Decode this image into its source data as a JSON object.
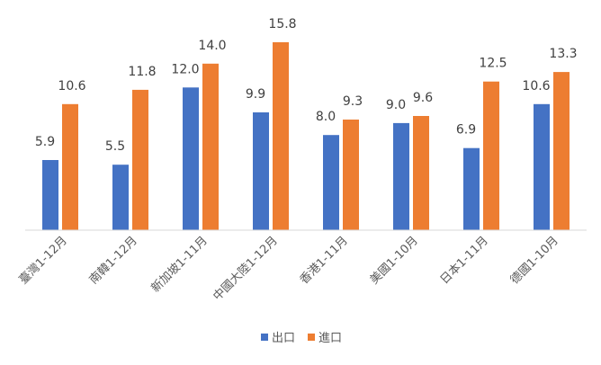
{
  "chart_data": {
    "type": "bar",
    "categories": [
      "臺灣1-12月",
      "南韓1-12月",
      "新加坡1-11月",
      "中國大陸1-12月",
      "香港1-11月",
      "美國1-10月",
      "日本1-11月",
      "德國1-10月"
    ],
    "series": [
      {
        "name": "出口",
        "values": [
          5.9,
          5.5,
          12.0,
          9.9,
          8.0,
          9.0,
          6.9,
          10.6
        ],
        "labels": [
          "5.9",
          "5.5",
          "12.0",
          "9.9",
          "8.0",
          "9.0",
          "6.9",
          "10.6"
        ],
        "color": "#4472C4"
      },
      {
        "name": "進口",
        "values": [
          10.6,
          11.8,
          14.0,
          15.8,
          9.3,
          9.6,
          12.5,
          13.3
        ],
        "labels": [
          "10.6",
          "11.8",
          "14.0",
          "15.8",
          "9.3",
          "9.6",
          "12.5",
          "13.3"
        ],
        "color": "#ED7D31"
      }
    ],
    "ylim": [
      0,
      15.8
    ],
    "grid": false,
    "legend_position": "bottom",
    "axis_color": "#D9D9D9"
  }
}
